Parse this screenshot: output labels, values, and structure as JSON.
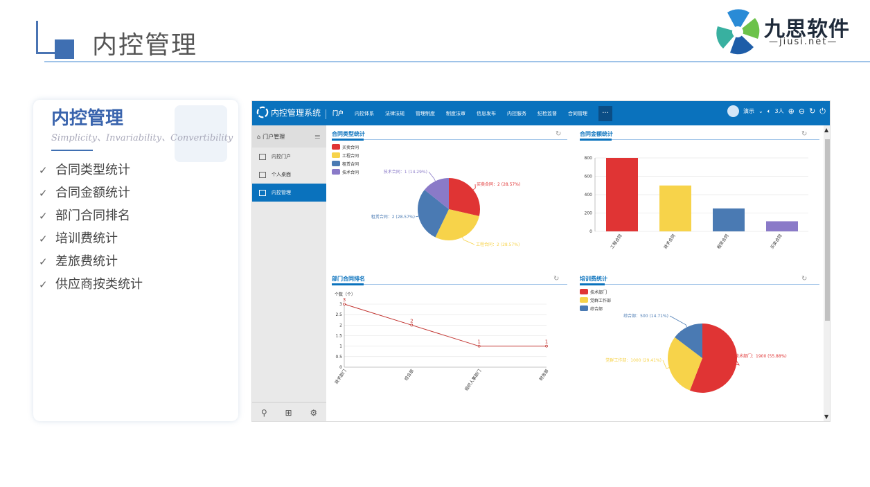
{
  "header": {
    "title": "内控管理"
  },
  "logo": {
    "name": "九思软件",
    "sub": "jiusi.net"
  },
  "card": {
    "title": "内控管理",
    "subtitle": "Simplicity、Invariability、Convertibility",
    "features": [
      "合同类型统计",
      "合同金额统计",
      "部门合同排名",
      "培训费统计",
      "差旅费统计",
      "供应商按类统计"
    ]
  },
  "app": {
    "brand": "内控管理系统",
    "nav": [
      "门户",
      "内控体系",
      "法律法规",
      "管理制度",
      "制度法审",
      "信息发布",
      "内控服务",
      "纪检监督",
      "合同管理"
    ],
    "more": "···",
    "user": "演示",
    "online": "3人",
    "sidebar": {
      "header": "门户管理",
      "items": [
        "内控门户",
        "个人桌面",
        "内控管理"
      ]
    },
    "panels": {
      "p1": "合同类型统计",
      "p2": "合同金额统计",
      "p3": "部门合同排名",
      "p4": "培训费统计"
    }
  },
  "colors": {
    "red": "#e03434",
    "yellow": "#f7d34a",
    "blue": "#4a7ab3",
    "purple": "#8a7ac8",
    "accent": "#0a72bd"
  },
  "chart_data": [
    {
      "type": "pie",
      "title": "合同类型统计",
      "labels": [
        "买卖合同",
        "工程合同",
        "租赁合同",
        "技术合同"
      ],
      "values": [
        2,
        2,
        2,
        1
      ],
      "percents": [
        "28.57%",
        "28.57%",
        "28.57%",
        "14.29%"
      ],
      "data_labels": [
        "买卖合同：2 (28.57%)",
        "工程合同：2 (28.57%)",
        "租赁合同：2 (28.57%)",
        "技术合同：1 (14.29%)"
      ],
      "legend": "top-left"
    },
    {
      "type": "bar",
      "title": "合同金额统计",
      "categories": [
        "工程合同",
        "技术合同",
        "租赁合同",
        "买卖合同"
      ],
      "values": [
        800,
        500,
        250,
        110
      ],
      "ylim": [
        0,
        800
      ],
      "yticks": [
        0,
        200,
        400,
        600,
        800
      ]
    },
    {
      "type": "line",
      "title": "部门合同排名",
      "ylabel": "个数（个）",
      "categories": [
        "技术部门",
        "综合部",
        "组织人事部门",
        "财务部"
      ],
      "values": [
        3,
        2,
        1,
        1
      ],
      "ylim": [
        0,
        3
      ],
      "yticks": [
        0,
        0.5,
        1,
        1.5,
        2,
        2.5,
        3
      ]
    },
    {
      "type": "pie",
      "title": "培训费统计",
      "labels": [
        "技术部门",
        "党群工作部",
        "综合部"
      ],
      "values": [
        1900,
        1000,
        500
      ],
      "percents": [
        "55.88%",
        "29.41%",
        "14.71%"
      ],
      "data_labels": [
        "技术部门：1900 (55.88%)",
        "党群工作部：1000 (29.41%)",
        "综合部：500 (14.71%)"
      ],
      "legend": "top-left"
    }
  ]
}
